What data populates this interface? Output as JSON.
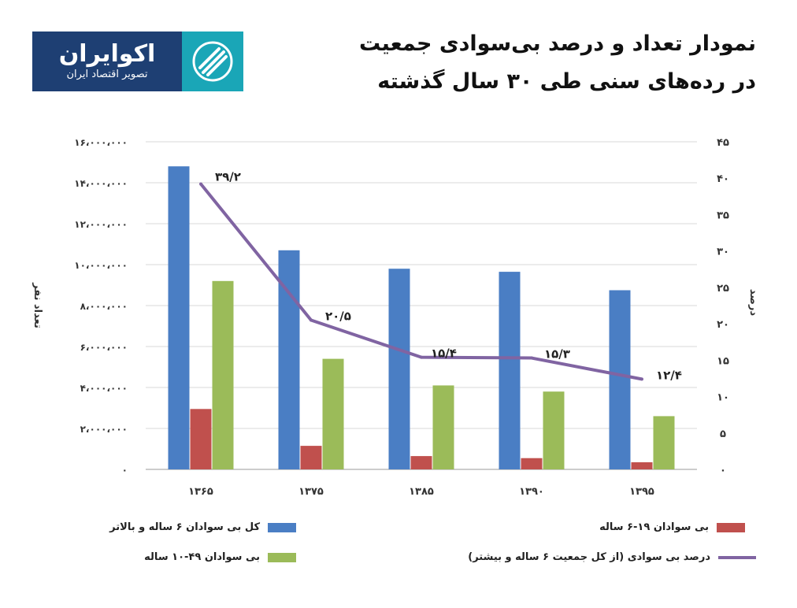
{
  "logo": {
    "name": "اکوایران",
    "tagline": "تصویر اقتصاد ایران",
    "bg_color": "#1e3f73",
    "mark_color": "#1aa6b7"
  },
  "title": {
    "line1": "نمودار تعداد و درصد بی‌سوادی جمعیت",
    "line2": "در رده‌های سنی طی ۳۰ سال گذشته"
  },
  "chart_data": {
    "type": "bar",
    "categories": [
      "۱۳۶۵",
      "۱۳۷۵",
      "۱۳۸۵",
      "۱۳۹۰",
      "۱۳۹۵"
    ],
    "ylabel": "تعداد نفر",
    "y2label": "درصد",
    "ylim": [
      0,
      16000000
    ],
    "y2lim": [
      0,
      45
    ],
    "yticks": [
      "۰",
      "۲،۰۰۰،۰۰۰",
      "۴،۰۰۰،۰۰۰",
      "۶،۰۰۰،۰۰۰",
      "۸،۰۰۰،۰۰۰",
      "۱۰،۰۰۰،۰۰۰",
      "۱۲،۰۰۰،۰۰۰",
      "۱۴،۰۰۰،۰۰۰",
      "۱۶،۰۰۰،۰۰۰"
    ],
    "y2ticks": [
      "۰",
      "۵",
      "۱۰",
      "۱۵",
      "۲۰",
      "۲۵",
      "۳۰",
      "۳۵",
      "۴۰",
      "۴۵"
    ],
    "grid": true,
    "legend_position": "bottom",
    "series": [
      {
        "name": "کل بی سوادان ۶ ساله و بالاتر",
        "type": "bar",
        "axis": "left",
        "color": "#4a7ec4",
        "values": [
          14800000,
          10700000,
          9800000,
          9650000,
          8750000
        ]
      },
      {
        "name": "بی سوادان ۱۹-۶ ساله",
        "type": "bar",
        "axis": "left",
        "color": "#c0504d",
        "values": [
          2950000,
          1150000,
          650000,
          550000,
          350000
        ]
      },
      {
        "name": "بی سوادان ۴۹-۱۰ ساله",
        "type": "bar",
        "axis": "left",
        "color": "#9bbb59",
        "values": [
          9200000,
          5400000,
          4100000,
          3800000,
          2600000
        ]
      },
      {
        "name": "درصد بی سوادی (از کل جمعیت ۶ ساله و بیشتر)",
        "type": "line",
        "axis": "right",
        "color": "#8064a2",
        "values": [
          39.2,
          20.5,
          15.4,
          15.3,
          12.4
        ],
        "labels": [
          "۳۹/۲",
          "۲۰/۵",
          "۱۵/۴",
          "۱۵/۳",
          "۱۲/۴"
        ]
      }
    ]
  },
  "legend": {
    "items": [
      {
        "label": "کل بی سوادان ۶ ساله و بالاتر",
        "color": "#4a7ec4",
        "kind": "box"
      },
      {
        "label": "بی سوادان ۱۹-۶ ساله",
        "color": "#c0504d",
        "kind": "box"
      },
      {
        "label": "بی سوادان ۴۹-۱۰ ساله",
        "color": "#9bbb59",
        "kind": "box"
      },
      {
        "label": "درصد بی سوادی (از کل جمعیت ۶ ساله و بیشتر)",
        "color": "#8064a2",
        "kind": "line"
      }
    ]
  }
}
